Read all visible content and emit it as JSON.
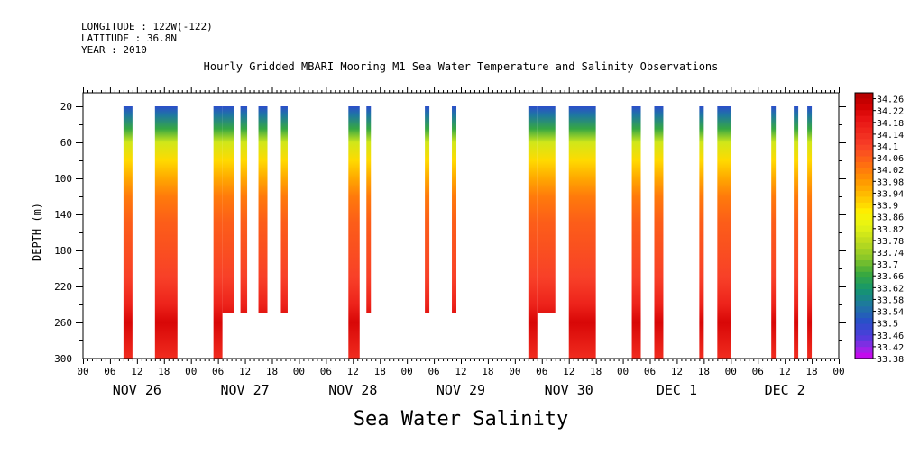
{
  "header": {
    "longitude": "LONGITUDE : 122W(-122)",
    "latitude": "LATITUDE : 36.8N",
    "year": "YEAR : 2010"
  },
  "chart_data": {
    "type": "heatmap",
    "title": "Hourly Gridded MBARI Mooring M1 Sea Water Temperature and Salinity Observations",
    "bottom_title": "Sea Water Salinity",
    "xlabel": "",
    "ylabel": "DEPTH (m)",
    "x_ticks_hours": [
      "00",
      "06",
      "12",
      "18",
      "00",
      "06",
      "12",
      "18",
      "00",
      "06",
      "12",
      "18",
      "00",
      "06",
      "12",
      "18",
      "00",
      "06",
      "12",
      "18",
      "00",
      "06",
      "12",
      "18",
      "00",
      "06",
      "12",
      "18",
      "00"
    ],
    "x_day_labels": [
      "NOV 26",
      "NOV 27",
      "NOV 28",
      "NOV 29",
      "NOV 30",
      "DEC  1",
      "DEC  2"
    ],
    "x_range_hours": [
      0,
      168
    ],
    "y_ticks": [
      20,
      60,
      100,
      140,
      180,
      220,
      260,
      300
    ],
    "y_range": [
      300,
      5
    ],
    "colorbar": {
      "labels": [
        "34.26",
        "34.22",
        "34.18",
        "34.14",
        "34.1",
        "34.06",
        "34.02",
        "33.98",
        "33.94",
        "33.9",
        "33.86",
        "33.82",
        "33.78",
        "33.74",
        "33.7",
        "33.66",
        "33.62",
        "33.58",
        "33.54",
        "33.5",
        "33.46",
        "33.42",
        "33.38"
      ],
      "min": 33.38,
      "max": 34.28
    },
    "observation_segments": [
      {
        "start": 9,
        "end": 11,
        "bottom": 300
      },
      {
        "start": 16,
        "end": 21,
        "bottom": 300
      },
      {
        "start": 29,
        "end": 31,
        "bottom": 300
      },
      {
        "start": 31,
        "end": 33.5,
        "bottom": 250
      },
      {
        "start": 35,
        "end": 36.5,
        "bottom": 250
      },
      {
        "start": 39,
        "end": 41,
        "bottom": 250
      },
      {
        "start": 44,
        "end": 45.5,
        "bottom": 250
      },
      {
        "start": 59,
        "end": 61.5,
        "bottom": 300
      },
      {
        "start": 63,
        "end": 64,
        "bottom": 250
      },
      {
        "start": 76,
        "end": 77,
        "bottom": 250
      },
      {
        "start": 82,
        "end": 83,
        "bottom": 250
      },
      {
        "start": 99,
        "end": 101,
        "bottom": 300
      },
      {
        "start": 101,
        "end": 105,
        "bottom": 250
      },
      {
        "start": 108,
        "end": 114,
        "bottom": 300
      },
      {
        "start": 122,
        "end": 124,
        "bottom": 300
      },
      {
        "start": 127,
        "end": 129,
        "bottom": 300
      },
      {
        "start": 137,
        "end": 138,
        "bottom": 300
      },
      {
        "start": 141,
        "end": 144,
        "bottom": 300
      },
      {
        "start": 153,
        "end": 154,
        "bottom": 300
      },
      {
        "start": 158,
        "end": 159,
        "bottom": 300
      },
      {
        "start": 161,
        "end": 162,
        "bottom": 300
      }
    ],
    "depth_profile": [
      {
        "depth": 20,
        "value": 33.5
      },
      {
        "depth": 30,
        "value": 33.56
      },
      {
        "depth": 45,
        "value": 33.66
      },
      {
        "depth": 60,
        "value": 33.8
      },
      {
        "depth": 80,
        "value": 33.9
      },
      {
        "depth": 100,
        "value": 33.96
      },
      {
        "depth": 120,
        "value": 34.02
      },
      {
        "depth": 150,
        "value": 34.06
      },
      {
        "depth": 180,
        "value": 34.08
      },
      {
        "depth": 210,
        "value": 34.1
      },
      {
        "depth": 240,
        "value": 34.16
      },
      {
        "depth": 260,
        "value": 34.22
      },
      {
        "depth": 300,
        "value": 34.14
      }
    ]
  }
}
